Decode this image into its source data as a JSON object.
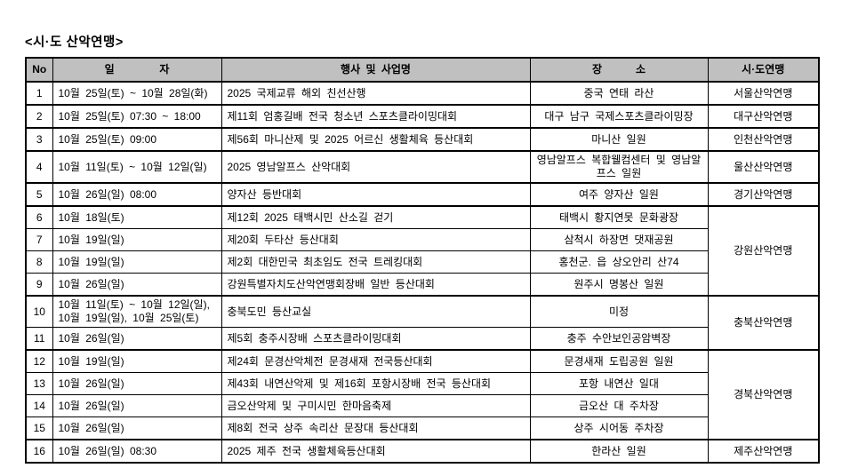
{
  "title": "<시·도 산악연맹>",
  "table": {
    "headers": [
      "No",
      "일        자",
      "행사 및 사업명",
      "장      소",
      "시·도연맹"
    ],
    "rows": [
      {
        "no": "1",
        "date": "10월 25일(토) ~ 10월 28일(화)",
        "event": "2025 국제교류 해외 친선산행",
        "place": "중국 연태 라산",
        "fed": "서울산악연맹",
        "fedSpan": 1,
        "groupStart": false
      },
      {
        "no": "2",
        "date": "10월 25일(토) 07:30 ~ 18:00",
        "event": "제11회 엄홍길배 전국 청소년 스포츠클라이밍대회",
        "place": "대구 남구 국제스포츠클라이밍장",
        "fed": "대구산악연맹",
        "fedSpan": 1,
        "groupStart": true
      },
      {
        "no": "3",
        "date": "10월 25일(토) 09:00",
        "event": "제56회 마니산제 및 2025 어르신 생활체육 등산대회",
        "place": "마니산 일원",
        "fed": "인천산악연맹",
        "fedSpan": 1,
        "groupStart": true
      },
      {
        "no": "4",
        "date": "10월 11일(토) ~ 10월 12일(일)",
        "event": "2025 영남알프스 산악대회",
        "place": "영남알프스 복합웰컴센터 및 영남알프스 일원",
        "fed": "울산산악연맹",
        "fedSpan": 1,
        "groupStart": true
      },
      {
        "no": "5",
        "date": "10월 26일(일) 08:00",
        "event": "양자산 등반대회",
        "place": "여주 양자산 일원",
        "fed": "경기산악연맹",
        "fedSpan": 1,
        "groupStart": true
      },
      {
        "no": "6",
        "date": "10월 18일(토)",
        "event": "제12회 2025 태백시민 산소길 걷기",
        "place": "태백시 황지연못 문화광장",
        "fed": "강원산악연맹",
        "fedSpan": 4,
        "groupStart": true
      },
      {
        "no": "7",
        "date": "10월 19일(일)",
        "event": "제20회 두타산 등산대회",
        "place": "삼척시 하장면 댓재공원",
        "groupStart": false
      },
      {
        "no": "8",
        "date": "10월 19일(일)",
        "event": "제2회 대한민국 최초임도 전국 트레킹대회",
        "place": "홍천군. 읍 상오안리 산74",
        "groupStart": false
      },
      {
        "no": "9",
        "date": "10월 26일(일)",
        "event": "강원특별자치도산악연맹회장배 일반 등산대회",
        "place": "원주시 명봉산 일원",
        "groupStart": false
      },
      {
        "no": "10",
        "date": "10월 11일(토) ~ 10월 12일(일),\n10월 19일(일), 10월 25일(토)",
        "event": "충북도민 등산교실",
        "place": "미정",
        "fed": "충북산악연맹",
        "fedSpan": 2,
        "groupStart": true
      },
      {
        "no": "11",
        "date": "10월 26일(일)",
        "event": "제5회 충주시장배 스포츠클라이밍대회",
        "place": "충주 수안보인공암벽장",
        "groupStart": false
      },
      {
        "no": "12",
        "date": "10월 19일(일)",
        "event": "제24회 문경산악체전 문경새재 전국등산대회",
        "place": "문경새재 도립공원 일원",
        "fed": "경북산악연맹",
        "fedSpan": 4,
        "groupStart": true
      },
      {
        "no": "13",
        "date": "10월 26일(일)",
        "event": "제43회 내연산악제 및 제16회 포항시장배 전국 등산대회",
        "place": "포항 내연산 일대",
        "groupStart": false
      },
      {
        "no": "14",
        "date": "10월 26일(일)",
        "event": "금오산악제 및 구미시민 한마음축제",
        "place": "금오산 대 주차장",
        "groupStart": false
      },
      {
        "no": "15",
        "date": "10월 26일(일)",
        "event": "제8회 전국 상주 속리산 문장대 등산대회",
        "place": "상주 시어동 주차장",
        "groupStart": false
      },
      {
        "no": "16",
        "date": "10월 26일(일) 08:30",
        "event": "2025 제주 전국 생활체육등산대회",
        "place": "한라산 일원",
        "fed": "제주산악연맹",
        "fedSpan": 1,
        "groupStart": true
      }
    ]
  },
  "colors": {
    "header_bg": "#c0c0c0",
    "border": "#000000",
    "text": "#000000"
  }
}
